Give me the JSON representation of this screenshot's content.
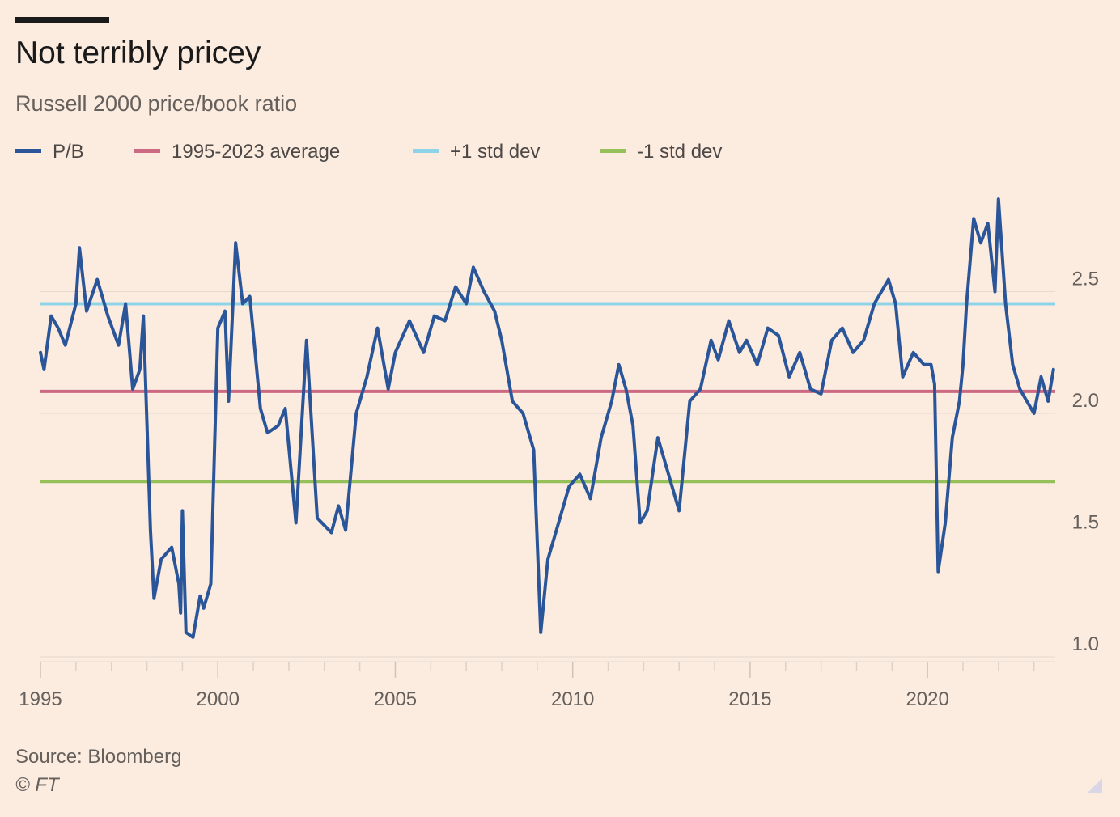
{
  "header": {
    "title": "Not terribly pricey",
    "subtitle": "Russell 2000 price/book ratio"
  },
  "legend": [
    {
      "label": "P/B",
      "color": "#2a5599"
    },
    {
      "label": "1995-2023 average",
      "color": "#cc6a83"
    },
    {
      "label": "+1 std dev",
      "color": "#8fd3e8"
    },
    {
      "label": "-1 std dev",
      "color": "#96c05a"
    }
  ],
  "footer": {
    "source": "Source: Bloomberg",
    "copyright": "© FT"
  },
  "chart_data": {
    "type": "line",
    "title": "Not terribly pricey",
    "subtitle": "Russell 2000 price/book ratio",
    "xlabel": "",
    "ylabel": "",
    "xlim": [
      1995,
      2023.6
    ],
    "ylim": [
      1.0,
      3.0
    ],
    "x_ticks": [
      1995,
      2000,
      2005,
      2010,
      2015,
      2020
    ],
    "y_ticks": [
      1.0,
      1.5,
      2.0,
      2.5
    ],
    "y_axis_side": "right",
    "grid": "horizontal",
    "legend_position": "top-left",
    "reference_lines": [
      {
        "name": "1995-2023 average",
        "value": 2.09,
        "color": "#cc6a83"
      },
      {
        "name": "+1 std dev",
        "value": 2.45,
        "color": "#8fd3e8"
      },
      {
        "name": "-1 std dev",
        "value": 1.72,
        "color": "#96c05a"
      }
    ],
    "series": [
      {
        "name": "P/B",
        "color": "#2a5599",
        "x": [
          1995.0,
          1995.1,
          1995.3,
          1995.5,
          1995.7,
          1996.0,
          1996.1,
          1996.3,
          1996.6,
          1996.9,
          1997.2,
          1997.4,
          1997.6,
          1997.8,
          1997.9,
          1998.1,
          1998.2,
          1998.4,
          1998.7,
          1998.9,
          1998.95,
          1999.0,
          1999.1,
          1999.3,
          1999.5,
          1999.6,
          1999.8,
          2000.0,
          2000.2,
          2000.3,
          2000.5,
          2000.7,
          2000.9,
          2001.2,
          2001.4,
          2001.7,
          2001.9,
          2002.2,
          2002.5,
          2002.8,
          2003.2,
          2003.4,
          2003.6,
          2003.9,
          2004.2,
          2004.5,
          2004.8,
          2005.0,
          2005.4,
          2005.8,
          2006.1,
          2006.4,
          2006.7,
          2007.0,
          2007.2,
          2007.5,
          2007.8,
          2008.0,
          2008.3,
          2008.6,
          2008.9,
          2009.1,
          2009.3,
          2009.6,
          2009.9,
          2010.2,
          2010.5,
          2010.8,
          2011.1,
          2011.3,
          2011.5,
          2011.7,
          2011.9,
          2012.1,
          2012.4,
          2012.7,
          2013.0,
          2013.3,
          2013.6,
          2013.9,
          2014.1,
          2014.4,
          2014.7,
          2014.9,
          2015.2,
          2015.5,
          2015.8,
          2016.1,
          2016.4,
          2016.7,
          2017.0,
          2017.3,
          2017.6,
          2017.9,
          2018.2,
          2018.5,
          2018.7,
          2018.9,
          2019.1,
          2019.3,
          2019.6,
          2019.9,
          2020.1,
          2020.2,
          2020.3,
          2020.5,
          2020.7,
          2020.9,
          2021.0,
          2021.1,
          2021.3,
          2021.5,
          2021.7,
          2021.9,
          2022.0,
          2022.2,
          2022.4,
          2022.6,
          2022.8,
          2023.0,
          2023.2,
          2023.4,
          2023.55
        ],
        "values": [
          2.25,
          2.18,
          2.4,
          2.35,
          2.28,
          2.45,
          2.68,
          2.42,
          2.55,
          2.4,
          2.28,
          2.45,
          2.1,
          2.18,
          2.4,
          1.52,
          1.24,
          1.4,
          1.45,
          1.3,
          1.18,
          1.6,
          1.1,
          1.08,
          1.25,
          1.2,
          1.3,
          2.35,
          2.42,
          2.05,
          2.7,
          2.45,
          2.48,
          2.02,
          1.92,
          1.95,
          2.02,
          1.55,
          2.3,
          1.57,
          1.51,
          1.62,
          1.52,
          2.0,
          2.15,
          2.35,
          2.1,
          2.25,
          2.38,
          2.25,
          2.4,
          2.38,
          2.52,
          2.45,
          2.6,
          2.5,
          2.42,
          2.3,
          2.05,
          2.0,
          1.85,
          1.1,
          1.4,
          1.55,
          1.7,
          1.75,
          1.65,
          1.9,
          2.05,
          2.2,
          2.1,
          1.95,
          1.55,
          1.6,
          1.9,
          1.75,
          1.6,
          2.05,
          2.1,
          2.3,
          2.22,
          2.38,
          2.25,
          2.3,
          2.2,
          2.35,
          2.32,
          2.15,
          2.25,
          2.1,
          2.08,
          2.3,
          2.35,
          2.25,
          2.3,
          2.45,
          2.5,
          2.55,
          2.45,
          2.15,
          2.25,
          2.2,
          2.2,
          2.12,
          1.35,
          1.55,
          1.9,
          2.05,
          2.2,
          2.45,
          2.8,
          2.7,
          2.78,
          2.5,
          2.88,
          2.45,
          2.2,
          2.1,
          2.05,
          2.0,
          2.15,
          2.05,
          2.18
        ]
      }
    ]
  }
}
